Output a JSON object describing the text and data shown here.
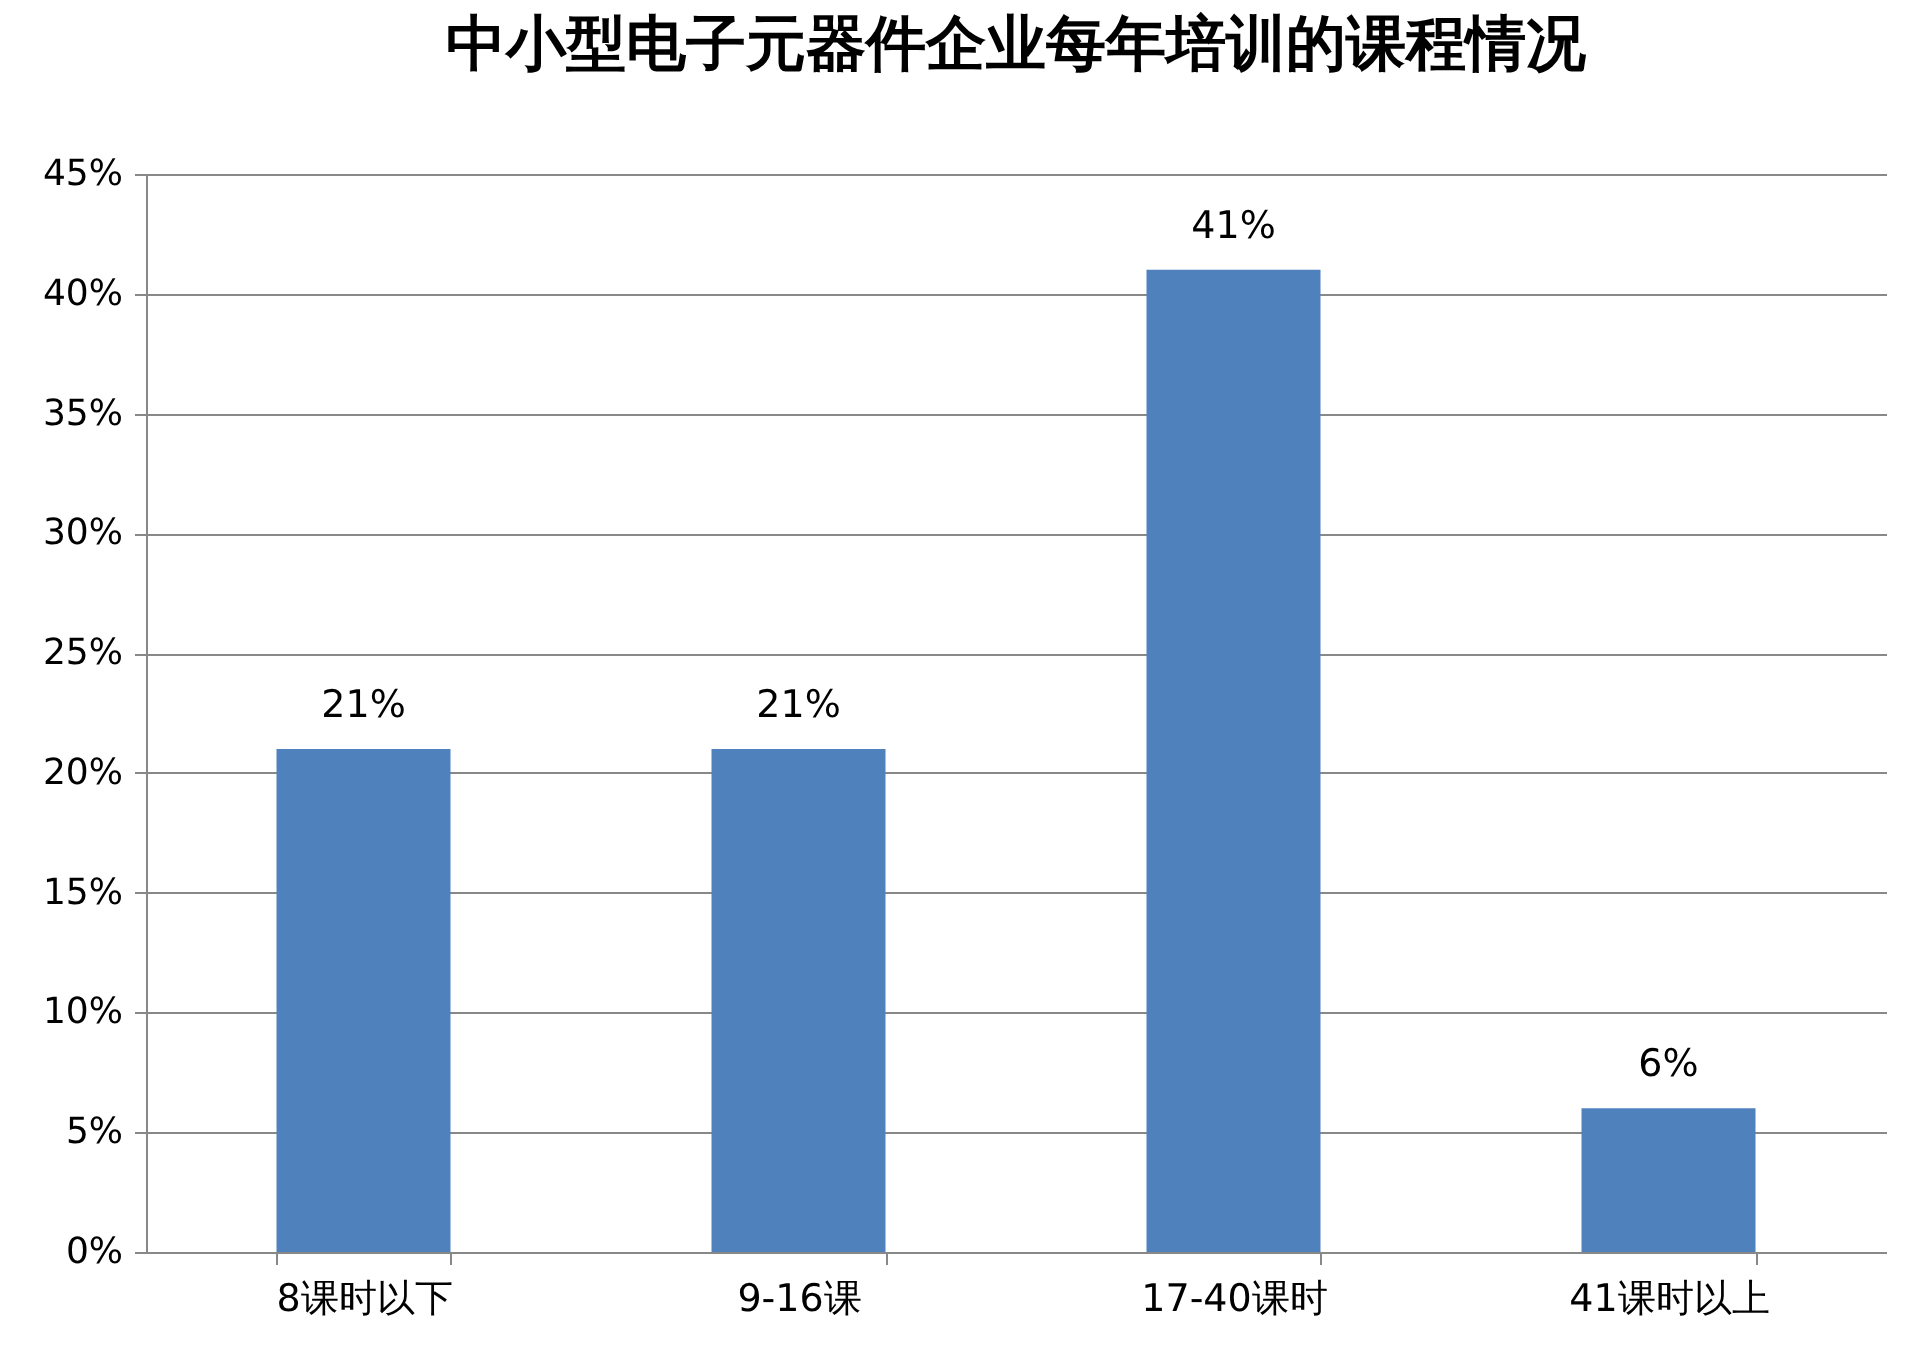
{
  "chart_data": {
    "type": "bar",
    "title": "中小型电子元器件企业每年培训的课程情况",
    "categories": [
      "8课时以下",
      "9-16课",
      "17-40课时",
      "41课时以上"
    ],
    "values": [
      21,
      21,
      41,
      6
    ],
    "value_labels": [
      "21%",
      "21%",
      "41%",
      "6%"
    ],
    "color": "#4f81bd",
    "ylim": [
      0,
      45
    ],
    "yticks": [
      {
        "value": 0,
        "label": "0%"
      },
      {
        "value": 5,
        "label": "5%"
      },
      {
        "value": 10,
        "label": "10%"
      },
      {
        "value": 15,
        "label": "15%"
      },
      {
        "value": 20,
        "label": "20%"
      },
      {
        "value": 25,
        "label": "25%"
      },
      {
        "value": 30,
        "label": "30%"
      },
      {
        "value": 35,
        "label": "35%"
      },
      {
        "value": 40,
        "label": "40%"
      },
      {
        "value": 45,
        "label": "45%"
      }
    ],
    "grid": "y"
  }
}
